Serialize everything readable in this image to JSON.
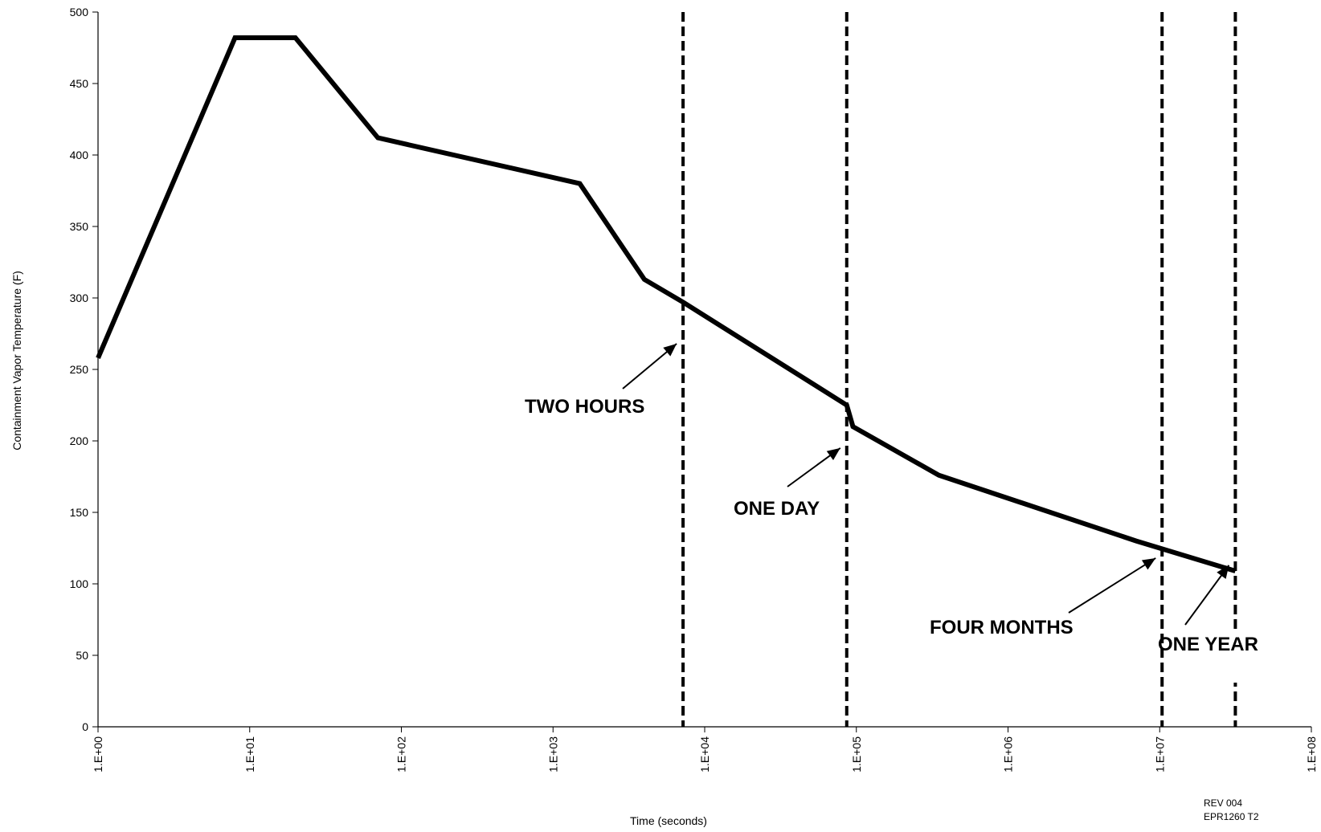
{
  "chart_data": {
    "type": "line",
    "xlabel": "Time (seconds)",
    "ylabel": "Containment Vapor Temperature (F)",
    "x_scale": "log",
    "xlim": [
      1,
      100000000
    ],
    "ylim": [
      0,
      500
    ],
    "x_ticks": [
      1,
      10,
      100,
      1000,
      10000,
      100000,
      1000000,
      10000000,
      100000000
    ],
    "x_tick_labels": [
      "1.E+00",
      "1.E+01",
      "1.E+02",
      "1.E+03",
      "1.E+04",
      "1.E+05",
      "1.E+06",
      "1.E+07",
      "1.E+08"
    ],
    "y_ticks": [
      0,
      50,
      100,
      150,
      200,
      250,
      300,
      350,
      400,
      450,
      500
    ],
    "y_tick_labels": [
      "0",
      "50",
      "100",
      "150",
      "200",
      "250",
      "300",
      "350",
      "400",
      "450",
      "500"
    ],
    "grid": false,
    "legend": "none",
    "line_color": "#000000",
    "series": [
      {
        "x": [
          1,
          8,
          20,
          70,
          1500,
          4000,
          7200,
          86400,
          95000,
          350000,
          7000000,
          31536000
        ],
        "y": [
          258,
          482,
          482,
          412,
          380,
          313,
          297,
          225,
          210,
          176,
          130,
          109
        ]
      }
    ],
    "reference_lines": [
      {
        "x": 7200,
        "label": "TWO HOURS",
        "arrow_to_y": 268
      },
      {
        "x": 86400,
        "label": "ONE DAY",
        "arrow_to_y": 195
      },
      {
        "x": 10368000,
        "label": "FOUR MONTHS",
        "arrow_to_y": 118
      },
      {
        "x": 31536000,
        "label": "ONE YEAR",
        "arrow_to_y": 113
      }
    ],
    "footer": {
      "line1": "REV 004",
      "line2": "EPR1260 T2"
    }
  }
}
